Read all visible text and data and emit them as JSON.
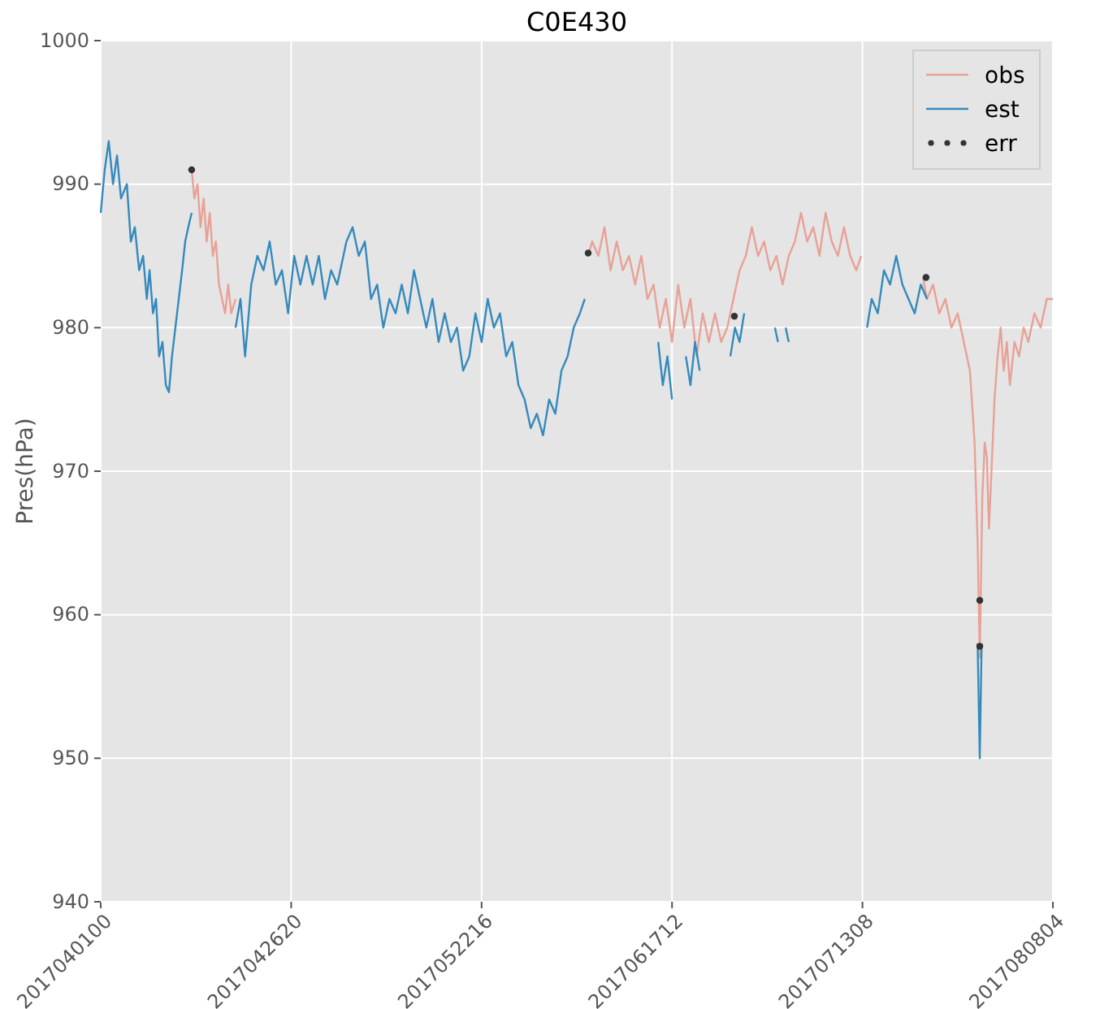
{
  "chart_data": {
    "type": "line",
    "title": "C0E430",
    "ylabel": "Pres(hPa)",
    "xlim": [
      "2017-04-01T00:00",
      "2017-08-08T04:00"
    ],
    "ylim": [
      940,
      1000
    ],
    "xticks": [
      {
        "value": "2017-04-01T00:00",
        "label": "2017040100"
      },
      {
        "value": "2017-04-26T20:00",
        "label": "2017042620"
      },
      {
        "value": "2017-05-22T16:00",
        "label": "2017052216"
      },
      {
        "value": "2017-06-17T12:00",
        "label": "2017061712"
      },
      {
        "value": "2017-07-13T08:00",
        "label": "2017071308"
      },
      {
        "value": "2017-08-08T04:00",
        "label": "2017080804"
      }
    ],
    "yticks": [
      940,
      950,
      960,
      970,
      980,
      990,
      1000
    ],
    "grid": true,
    "legend": "top right",
    "series": [
      {
        "name": "obs",
        "color": "#e8a196",
        "x": [
          "2017-04-13T08:00",
          "2017-04-13T17:00",
          "2017-04-14T03:00",
          "2017-04-14T13:00",
          "2017-04-14T23:00",
          "2017-04-15T09:00",
          "2017-04-15T19:00",
          "2017-04-16T05:00",
          "2017-04-16T15:00",
          "2017-04-17T01:00",
          "2017-04-17T11:00",
          "2017-04-17T21:00",
          "2017-04-18T07:00",
          "2017-04-18T17:00",
          "2017-04-19T07:00",
          "2017-05-12T16:00",
          "2017-06-06T03:00",
          "2017-06-06T16:00",
          "2017-06-07T12:00",
          "2017-06-08T08:00",
          "2017-06-09T04:00",
          "2017-06-10T00:00",
          "2017-06-10T20:00",
          "2017-06-11T16:00",
          "2017-06-12T12:00",
          "2017-06-13T08:00",
          "2017-06-14T04:00",
          "2017-06-15T00:00",
          "2017-06-15T20:00",
          "2017-06-16T16:00",
          "2017-06-17T12:00",
          "2017-06-18T08:00",
          "2017-06-19T04:00",
          "2017-06-20T00:00",
          "2017-06-20T20:00",
          "2017-06-21T16:00",
          "2017-06-22T12:00",
          "2017-06-23T08:00",
          "2017-06-24T04:00",
          "2017-06-25T00:00",
          "2017-06-25T20:00",
          "2017-06-26T16:00",
          "2017-06-27T12:00",
          "2017-06-28T08:00",
          "2017-06-29T04:00",
          "2017-06-30T00:00",
          "2017-06-30T20:00",
          "2017-07-01T16:00",
          "2017-07-02T12:00",
          "2017-07-03T08:00",
          "2017-07-04T04:00",
          "2017-07-05T00:00",
          "2017-07-05T20:00",
          "2017-07-06T16:00",
          "2017-07-07T12:00",
          "2017-07-08T08:00",
          "2017-07-09T04:00",
          "2017-07-10T00:00",
          "2017-07-10T20:00",
          "2017-07-11T16:00",
          "2017-07-12T12:00",
          "2017-07-13T04:00",
          "2017-07-17T12:00",
          "2017-07-21T13:00",
          "2017-07-22T02:00",
          "2017-07-22T22:00",
          "2017-07-23T18:00",
          "2017-07-24T14:00",
          "2017-07-25T10:00",
          "2017-07-26T06:00",
          "2017-07-27T02:00",
          "2017-07-27T22:00",
          "2017-07-28T13:00",
          "2017-07-28T23:00",
          "2017-07-29T06:00",
          "2017-07-29T14:00",
          "2017-07-29T22:00",
          "2017-07-30T05:00",
          "2017-07-30T12:00",
          "2017-07-30T20:00",
          "2017-07-31T06:00",
          "2017-07-31T16:00",
          "2017-08-01T02:00",
          "2017-08-01T12:00",
          "2017-08-01T22:00",
          "2017-08-02T08:00",
          "2017-08-02T23:00",
          "2017-08-03T14:00",
          "2017-08-04T05:00",
          "2017-08-04T20:00",
          "2017-08-05T16:00",
          "2017-08-06T12:00",
          "2017-08-07T08:00",
          "2017-08-08T04:00"
        ],
        "values": [
          991,
          989,
          990,
          987,
          989,
          986,
          988,
          985,
          986,
          983,
          982,
          981,
          983,
          981,
          982,
          null,
          985,
          986,
          985,
          987,
          984,
          986,
          984,
          985,
          983,
          985,
          982,
          983,
          980,
          982,
          979,
          983,
          980,
          982,
          978,
          981,
          979,
          981,
          979,
          980,
          982,
          984,
          985,
          987,
          985,
          986,
          984,
          985,
          983,
          985,
          986,
          988,
          986,
          987,
          985,
          988,
          986,
          985,
          987,
          985,
          984,
          985,
          null,
          983.5,
          982,
          983,
          981,
          982,
          980,
          981,
          979,
          977,
          972,
          965,
          957,
          968,
          972,
          971,
          966,
          970,
          975,
          978,
          980,
          977,
          979,
          976,
          979,
          978,
          980,
          979,
          981,
          980,
          982,
          982
        ]
      },
      {
        "name": "est",
        "color": "#348abd",
        "x": [
          "2017-04-01T00:00",
          "2017-04-01T13:00",
          "2017-04-02T02:00",
          "2017-04-02T16:00",
          "2017-04-03T05:00",
          "2017-04-03T18:00",
          "2017-04-04T13:00",
          "2017-04-05T02:00",
          "2017-04-05T15:00",
          "2017-04-06T05:00",
          "2017-04-06T18:00",
          "2017-04-07T06:00",
          "2017-04-07T15:00",
          "2017-04-08T02:00",
          "2017-04-08T12:00",
          "2017-04-08T22:00",
          "2017-04-09T09:00",
          "2017-04-09T20:00",
          "2017-04-10T06:00",
          "2017-04-10T16:00",
          "2017-04-11T03:00",
          "2017-04-11T14:00",
          "2017-04-12T01:00",
          "2017-04-12T11:00",
          "2017-04-12T21:00",
          "2017-04-13T08:00",
          "2017-04-16T10:00",
          "2017-04-19T07:00",
          "2017-04-19T23:00",
          "2017-04-20T14:00",
          "2017-04-21T10:00",
          "2017-04-22T06:00",
          "2017-04-23T02:00",
          "2017-04-23T22:00",
          "2017-04-24T18:00",
          "2017-04-25T14:00",
          "2017-04-26T10:00",
          "2017-04-27T06:00",
          "2017-04-28T02:00",
          "2017-04-28T22:00",
          "2017-04-29T18:00",
          "2017-04-30T14:00",
          "2017-05-01T10:00",
          "2017-05-02T06:00",
          "2017-05-03T02:00",
          "2017-05-04T08:00",
          "2017-05-05T04:00",
          "2017-05-06T00:00",
          "2017-05-06T20:00",
          "2017-05-07T16:00",
          "2017-05-08T12:00",
          "2017-05-09T08:00",
          "2017-05-10T04:00",
          "2017-05-11T00:00",
          "2017-05-11T20:00",
          "2017-05-12T16:00",
          "2017-05-13T12:00",
          "2017-05-14T08:00",
          "2017-05-15T04:00",
          "2017-05-16T00:00",
          "2017-05-16T20:00",
          "2017-05-17T16:00",
          "2017-05-18T12:00",
          "2017-05-19T08:00",
          "2017-05-20T04:00",
          "2017-05-21T00:00",
          "2017-05-21T20:00",
          "2017-05-22T16:00",
          "2017-05-23T12:00",
          "2017-05-24T08:00",
          "2017-05-25T04:00",
          "2017-05-26T00:00",
          "2017-05-26T20:00",
          "2017-05-27T16:00",
          "2017-05-28T12:00",
          "2017-05-29T08:00",
          "2017-05-30T04:00",
          "2017-05-31T00:00",
          "2017-05-31T20:00",
          "2017-06-01T16:00",
          "2017-06-02T12:00",
          "2017-06-03T08:00",
          "2017-06-04T04:00",
          "2017-06-05T00:00",
          "2017-06-05T16:00",
          "2017-06-10T20:00",
          "2017-06-15T15:00",
          "2017-06-16T06:00",
          "2017-06-16T21:00",
          "2017-06-17T12:00",
          "2017-06-18T08:00",
          "2017-06-19T09:00",
          "2017-06-20T00:00",
          "2017-06-20T15:00",
          "2017-06-21T06:00",
          "2017-06-22T02:00",
          "2017-06-25T10:00",
          "2017-06-26T01:00",
          "2017-06-26T16:00",
          "2017-06-27T07:00",
          "2017-06-27T22:00",
          "2017-07-01T11:00",
          "2017-07-01T21:00",
          "2017-07-02T12:00",
          "2017-07-02T22:00",
          "2017-07-03T08:00",
          "2017-07-04T04:00",
          "2017-07-13T23:00",
          "2017-07-14T14:00",
          "2017-07-15T10:00",
          "2017-07-16T06:00",
          "2017-07-17T02:00",
          "2017-07-17T22:00",
          "2017-07-18T18:00",
          "2017-07-19T14:00",
          "2017-07-20T10:00",
          "2017-07-21T06:00",
          "2017-07-22T02:00",
          "2017-07-25T00:00",
          "2017-07-28T23:00",
          "2017-07-29T06:00",
          "2017-07-29T12:00"
        ],
        "values": [
          988,
          991,
          993,
          990,
          992,
          989,
          990,
          986,
          987,
          984,
          985,
          982,
          984,
          981,
          982,
          978,
          979,
          976,
          975.5,
          978,
          980,
          982,
          984,
          986,
          987,
          988,
          null,
          980,
          982,
          978,
          983,
          985,
          984,
          986,
          983,
          984,
          981,
          985,
          983,
          985,
          983,
          985,
          982,
          984,
          983,
          986,
          987,
          985,
          986,
          982,
          983,
          980,
          982,
          981,
          983,
          981,
          984,
          982,
          980,
          982,
          979,
          981,
          979,
          980,
          977,
          978,
          981,
          979,
          982,
          980,
          981,
          978,
          979,
          976,
          975,
          973,
          974,
          972.5,
          975,
          974,
          977,
          978,
          980,
          981,
          982,
          null,
          979,
          976,
          978,
          975,
          null,
          978,
          976,
          979,
          977,
          null,
          978,
          980,
          979,
          981,
          null,
          980,
          979,
          null,
          980,
          979,
          null,
          980,
          982,
          981,
          984,
          983,
          985,
          983,
          982,
          981,
          983,
          982,
          null,
          958,
          950,
          958
        ]
      },
      {
        "name": "err",
        "type": "scatter",
        "color": "#333333",
        "marker": "circle",
        "x": [
          "2017-04-13T08:00",
          "2017-06-06T03:00",
          "2017-06-25T23:00",
          "2017-07-21T23:00",
          "2017-07-29T06:00",
          "2017-07-29T06:00"
        ],
        "values": [
          991,
          985.2,
          980.8,
          983.5,
          961,
          957.8
        ]
      }
    ]
  }
}
